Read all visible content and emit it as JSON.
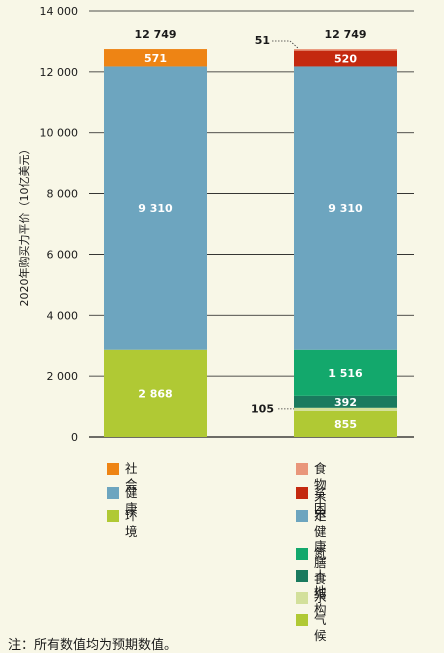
{
  "chart_data": {
    "type": "bar",
    "stacked": true,
    "ylabel": "2020年购买力平价（10亿美元）",
    "ylim": [
      0,
      14000
    ],
    "yticks": [
      0,
      2000,
      4000,
      6000,
      8000,
      10000,
      12000,
      14000
    ],
    "ytick_labels": [
      "0",
      "2 000",
      "4 000",
      "6 000",
      "8 000",
      "10 000",
      "12 000",
      "14 000"
    ],
    "grid": true,
    "categories": [
      "",
      ""
    ],
    "totals": [
      12749,
      12749
    ],
    "total_labels": [
      "12 749",
      "12 749"
    ],
    "bars": [
      {
        "segments": [
          {
            "series": "环境",
            "value": 2868,
            "label": "2 868",
            "color": "#b0c934"
          },
          {
            "series": "健康",
            "value": 9310,
            "label": "9 310",
            "color": "#6da5bf"
          },
          {
            "series": "社会",
            "value": 571,
            "label": "571",
            "color": "#ee8414"
          }
        ]
      },
      {
        "segments": [
          {
            "series": "气候",
            "value": 855,
            "label": "855",
            "color": "#b0c934"
          },
          {
            "series": "水",
            "value": 105,
            "label": "105",
            "color": "#d3e09b",
            "callout": true
          },
          {
            "series": "土地",
            "value": 392,
            "label": "392",
            "color": "#1a7a5e"
          },
          {
            "series": "氮",
            "value": 1516,
            "label": "1 516",
            "color": "#13a86c"
          },
          {
            "series": "不健康膳食结构",
            "value": 9310,
            "label": "9 310",
            "color": "#6da5bf"
          },
          {
            "series": "贫困",
            "value": 520,
            "label": "520",
            "color": "#c4290f"
          },
          {
            "series": "食物不足",
            "value": 51,
            "label": "51",
            "color": "#e9967a",
            "callout": true
          }
        ]
      }
    ]
  },
  "legend": {
    "left": [
      {
        "label": "社会",
        "color": "#ee8414"
      },
      {
        "label": "健康",
        "color": "#6da5bf"
      },
      {
        "label": "环境",
        "color": "#b0c934"
      }
    ],
    "right": [
      {
        "label": "食物不足",
        "color": "#e9967a"
      },
      {
        "label": "贫困",
        "color": "#c4290f"
      },
      {
        "label": "不健康膳食结构",
        "label_line1": "不健康膳",
        "label_line2": "食结构",
        "color": "#6da5bf"
      },
      {
        "label": "氮",
        "color": "#13a86c"
      },
      {
        "label": "土地",
        "color": "#1a7a5e"
      },
      {
        "label": "水",
        "color": "#d3e09b"
      },
      {
        "label": "气候",
        "color": "#b0c934"
      }
    ]
  },
  "note": "注：所有数值均为预期数值。"
}
